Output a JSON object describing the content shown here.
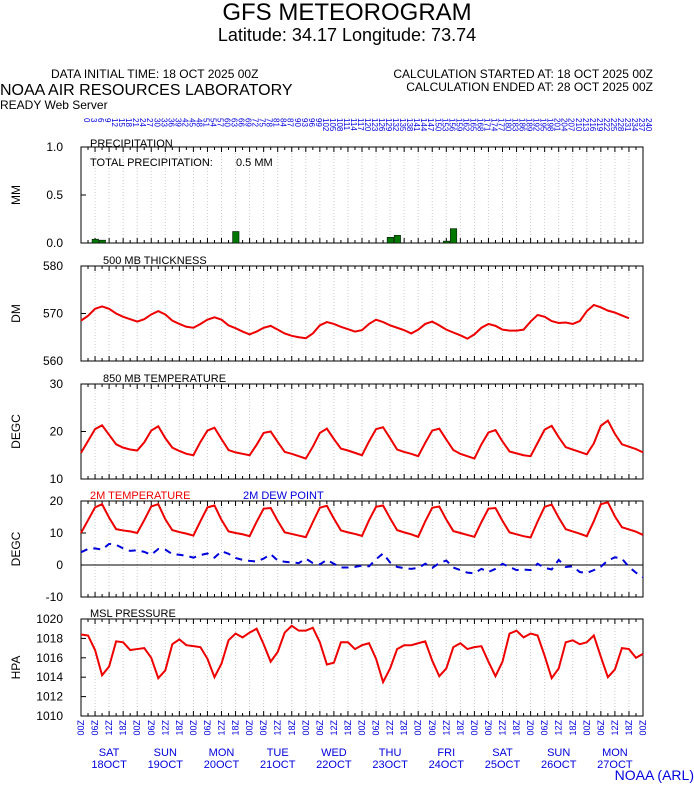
{
  "header": {
    "title": "GFS METEOROGRAM",
    "location": "Latitude: 34.17 Longitude:  73.74",
    "data_initial": "DATA INITIAL TIME: 18 OCT 2025 00Z",
    "calc_started": "CALCULATION STARTED AT: 18 OCT 2025 00Z",
    "calc_ended": "CALCULATION ENDED AT: 28 OCT 2025 00Z",
    "lab": "NOAA AIR RESOURCES LABORATORY",
    "server": "READY Web Server",
    "credit": "NOAA (ARL)"
  },
  "colors": {
    "red": "#ee0000",
    "blue": "#0000dd",
    "green": "#007700",
    "grid": "#cccccc"
  },
  "forecast_hours_top": [
    "0",
    "3",
    "6",
    "9",
    "12",
    "15",
    "18",
    "21",
    "24",
    "27",
    "30",
    "33",
    "36",
    "39",
    "42",
    "45",
    "48",
    "51",
    "54",
    "57",
    "60",
    "63",
    "66",
    "69",
    "72",
    "75",
    "78",
    "81",
    "84",
    "87",
    "90",
    "93",
    "96",
    "99",
    "102",
    "105",
    "108",
    "111",
    "114",
    "117",
    "120",
    "123",
    "126",
    "129",
    "132",
    "135",
    "138",
    "141",
    "144",
    "147",
    "150",
    "153",
    "156",
    "159",
    "162",
    "165",
    "168",
    "171",
    "174",
    "177",
    "180",
    "183",
    "186",
    "189",
    "192",
    "195",
    "198",
    "201",
    "204",
    "207",
    "210",
    "213",
    "216",
    "219",
    "222",
    "225",
    "228",
    "231",
    "234",
    "237",
    "240"
  ],
  "hours_utc_bottom": [
    "00Z",
    "06Z",
    "12Z",
    "18Z"
  ],
  "days": [
    {
      "dow": "SAT",
      "date": "18OCT"
    },
    {
      "dow": "SUN",
      "date": "19OCT"
    },
    {
      "dow": "MON",
      "date": "20OCT"
    },
    {
      "dow": "TUE",
      "date": "21OCT"
    },
    {
      "dow": "WED",
      "date": "22OCT"
    },
    {
      "dow": "THU",
      "date": "23OCT"
    },
    {
      "dow": "FRI",
      "date": "24OCT"
    },
    {
      "dow": "SAT",
      "date": "25OCT"
    },
    {
      "dow": "SUN",
      "date": "26OCT"
    },
    {
      "dow": "MON",
      "date": "27OCT"
    }
  ],
  "chart_data": [
    {
      "type": "bar",
      "title": "PRECIPITATION",
      "annotation_label": "TOTAL PRECIPITATION:",
      "annotation_value": "0.5 MM",
      "ylabel": "MM",
      "ylim": [
        0.0,
        1.0
      ],
      "yticks": [
        "0.0",
        "0.5",
        "1.0"
      ],
      "ytick_values": [
        0.0,
        0.5,
        1.0
      ],
      "bars": [
        {
          "hour": 6,
          "value": 0.04
        },
        {
          "hour": 9,
          "value": 0.03
        },
        {
          "hour": 66,
          "value": 0.12
        },
        {
          "hour": 132,
          "value": 0.06
        },
        {
          "hour": 135,
          "value": 0.08
        },
        {
          "hour": 156,
          "value": 0.02
        },
        {
          "hour": 159,
          "value": 0.15
        }
      ]
    },
    {
      "type": "line",
      "title": "500 MB  THICKNESS",
      "ylabel": "DM",
      "ylim": [
        560,
        580
      ],
      "yticks": [
        "560",
        "570",
        "580"
      ],
      "ytick_values": [
        560,
        570,
        580
      ],
      "series": [
        {
          "values": [
            568.5,
            569.5,
            571,
            571.5,
            571,
            570,
            569.3,
            568.8,
            568.3,
            568.8,
            569.8,
            570.5,
            569.8,
            568.5,
            567.8,
            567.2,
            567.0,
            567.8,
            568.7,
            569.2,
            568.7,
            567.5,
            566.9,
            566.2,
            565.6,
            566.2,
            567,
            567.4,
            566.6,
            565.8,
            565.3,
            565.0,
            564.8,
            565.8,
            567.5,
            568.2,
            567.8,
            567.2,
            566.7,
            566.2,
            566.5,
            567.8,
            568.7,
            568.2,
            567.5,
            567.0,
            566.5,
            565.8,
            566.6,
            567.8,
            568.3,
            567.5,
            566.6,
            566.0,
            565.4,
            564.7,
            565.6,
            567.0,
            567.8,
            567.4,
            566.6,
            566.4,
            566.4,
            566.6,
            568.3,
            569.7,
            569.3,
            568.4,
            568.0,
            568.1,
            567.8,
            568.4,
            570.5,
            571.8,
            571.3,
            570.6,
            570.2,
            569.6,
            569.0
          ]
        }
      ],
      "hours": [
        0,
        3,
        6,
        9,
        12,
        15,
        18,
        21,
        24,
        27,
        30,
        33,
        36,
        39,
        42,
        45,
        48,
        51,
        54,
        57,
        60,
        63,
        66,
        69,
        72,
        75,
        78,
        81,
        84,
        87,
        90,
        93,
        96,
        99,
        102,
        105,
        108,
        111,
        114,
        117,
        120,
        123,
        126,
        129,
        132,
        135,
        138,
        141,
        144,
        147,
        150,
        153,
        156,
        159,
        162,
        165,
        168,
        171,
        174,
        177,
        180,
        183,
        186,
        189,
        192,
        195,
        198,
        201,
        204,
        207,
        210,
        213,
        216,
        219,
        222,
        225,
        228,
        231,
        234
      ]
    },
    {
      "type": "line",
      "title": "850 MB  TEMPERATURE",
      "ylabel": "DEGC",
      "ylim": [
        10,
        30
      ],
      "yticks": [
        "10",
        "20",
        "30"
      ],
      "ytick_values": [
        10,
        20,
        30
      ],
      "series": [
        {
          "values": [
            15.5,
            18,
            20.5,
            21.3,
            19.3,
            17.3,
            16.6,
            16.2,
            16,
            17.7,
            20.2,
            21.1,
            18.6,
            16.6,
            15.9,
            15.3,
            15,
            17.8,
            20.2,
            20.8,
            18.4,
            16.1,
            15.6,
            15.3,
            15.0,
            17.2,
            19.7,
            20.0,
            17.8,
            15.7,
            15.3,
            14.8,
            14.3,
            16.8,
            19.7,
            20.6,
            18.4,
            16.4,
            16.0,
            15.5,
            15.0,
            17.9,
            20.5,
            20.9,
            18.6,
            16.2,
            15.7,
            15.3,
            14.8,
            17.6,
            20.2,
            20.6,
            18.3,
            16.1,
            15.3,
            14.8,
            14.3,
            17.3,
            19.8,
            20.3,
            17.9,
            15.8,
            15.4,
            15.0,
            14.8,
            17.6,
            20.4,
            21.2,
            18.8,
            16.7,
            16.2,
            15.7,
            15.2,
            17.5,
            21.2,
            22.3,
            19.5,
            17.3,
            16.8,
            16.3,
            15.6
          ]
        }
      ],
      "hours": [
        0,
        3,
        6,
        9,
        12,
        15,
        18,
        21,
        24,
        27,
        30,
        33,
        36,
        39,
        42,
        45,
        48,
        51,
        54,
        57,
        60,
        63,
        66,
        69,
        72,
        75,
        78,
        81,
        84,
        87,
        90,
        93,
        96,
        99,
        102,
        105,
        108,
        111,
        114,
        117,
        120,
        123,
        126,
        129,
        132,
        135,
        138,
        141,
        144,
        147,
        150,
        153,
        156,
        159,
        162,
        165,
        168,
        171,
        174,
        177,
        180,
        183,
        186,
        189,
        192,
        195,
        198,
        201,
        204,
        207,
        210,
        213,
        216,
        219,
        222,
        225,
        228,
        231,
        234,
        237,
        240
      ]
    },
    {
      "type": "line",
      "title_red": "2M TEMPERATURE",
      "title_blue": "2M  DEW POINT",
      "ylabel": "DEGC",
      "ylim": [
        -10,
        20
      ],
      "yticks": [
        "-10",
        "0",
        "10",
        "20"
      ],
      "ytick_values": [
        -10,
        0,
        10,
        20
      ],
      "series": [
        {
          "name": "2M TEMPERATURE",
          "values": [
            10,
            14,
            18,
            19,
            14.8,
            11.2,
            10.8,
            10.5,
            10.0,
            14,
            18.3,
            19.0,
            14.3,
            10.9,
            10.3,
            9.8,
            9.2,
            13.7,
            18.0,
            18.6,
            14.1,
            10.5,
            10.0,
            9.6,
            9.0,
            13.5,
            17.6,
            17.8,
            13.8,
            10.2,
            9.7,
            9.2,
            8.7,
            13.4,
            17.9,
            18.5,
            14.5,
            10.8,
            10.2,
            9.7,
            9.1,
            14.0,
            18.2,
            18.6,
            14.6,
            10.9,
            10.2,
            9.6,
            8.8,
            13.6,
            17.9,
            18.3,
            14.2,
            10.6,
            10.0,
            9.4,
            8.8,
            13.4,
            17.6,
            17.8,
            13.8,
            10.2,
            9.6,
            9.0,
            8.6,
            13.6,
            18.2,
            18.9,
            14.8,
            11.2,
            10.5,
            9.8,
            9.0,
            13.7,
            19.0,
            19.6,
            15.2,
            11.8,
            11.1,
            10.4,
            9.4
          ]
        },
        {
          "name": "2M  DEW POINT",
          "values": [
            4,
            5,
            5.2,
            4.8,
            6.6,
            6.3,
            5.2,
            4.4,
            4.6,
            4.1,
            3.2,
            5.0,
            4.8,
            3.4,
            3.2,
            2.9,
            2.3,
            3.1,
            3.6,
            2.3,
            4.3,
            3.5,
            2.2,
            1.6,
            1.3,
            1.1,
            2.0,
            3.4,
            1.4,
            1.0,
            0.8,
            0.6,
            2.0,
            0.6,
            0.2,
            1.6,
            0.4,
            -0.8,
            -0.8,
            -0.6,
            -0.2,
            -0.4,
            1.8,
            3.6,
            0.8,
            -0.6,
            -1.0,
            -1.2,
            -0.9,
            0.4,
            -0.9,
            0.6,
            1.4,
            -0.8,
            -1.6,
            -2.4,
            -2.6,
            -1.2,
            -2.2,
            -1.2,
            0.4,
            -0.6,
            -1.6,
            -1.4,
            -1.6,
            0.4,
            -0.9,
            -1.4,
            1.6,
            -0.6,
            -0.4,
            -2.2,
            -2.5,
            -1.6,
            -0.5,
            1.4,
            2.4,
            2.0,
            -0.6,
            -2.4,
            -3.8
          ]
        }
      ],
      "hours": [
        0,
        3,
        6,
        9,
        12,
        15,
        18,
        21,
        24,
        27,
        30,
        33,
        36,
        39,
        42,
        45,
        48,
        51,
        54,
        57,
        60,
        63,
        66,
        69,
        72,
        75,
        78,
        81,
        84,
        87,
        90,
        93,
        96,
        99,
        102,
        105,
        108,
        111,
        114,
        117,
        120,
        123,
        126,
        129,
        132,
        135,
        138,
        141,
        144,
        147,
        150,
        153,
        156,
        159,
        162,
        165,
        168,
        171,
        174,
        177,
        180,
        183,
        186,
        189,
        192,
        195,
        198,
        201,
        204,
        207,
        210,
        213,
        216,
        219,
        222,
        225,
        228,
        231,
        234,
        237,
        240
      ]
    },
    {
      "type": "line",
      "title": "MSL PRESSURE",
      "ylabel": "HPA",
      "ylim": [
        1010,
        1020
      ],
      "yticks": [
        "1010",
        "1012",
        "1014",
        "1016",
        "1018",
        "1020"
      ],
      "ytick_values": [
        1010,
        1012,
        1014,
        1016,
        1018,
        1020
      ],
      "series": [
        {
          "values": [
            1018.4,
            1018.3,
            1016.8,
            1014.2,
            1015.1,
            1017.7,
            1017.6,
            1016.8,
            1016.9,
            1017.0,
            1016.0,
            1013.9,
            1014.7,
            1017.4,
            1017.9,
            1017.3,
            1017.2,
            1017.1,
            1015.9,
            1014.0,
            1015.4,
            1017.8,
            1018.5,
            1018.1,
            1018.6,
            1019.0,
            1017.4,
            1015.6,
            1016.6,
            1018.6,
            1019.3,
            1018.8,
            1018.8,
            1019.1,
            1017.6,
            1015.3,
            1015.5,
            1017.6,
            1017.6,
            1016.9,
            1017.3,
            1017.5,
            1015.9,
            1013.5,
            1014.9,
            1016.9,
            1017.3,
            1017.3,
            1017.5,
            1017.7,
            1015.7,
            1014.1,
            1014.9,
            1017.1,
            1017.5,
            1016.9,
            1017.1,
            1017.2,
            1015.6,
            1014.1,
            1015.6,
            1018.5,
            1018.8,
            1018.1,
            1018.5,
            1018.3,
            1016.2,
            1013.9,
            1014.9,
            1017.6,
            1017.8,
            1017.4,
            1017.6,
            1018.3,
            1016.1,
            1014.0,
            1014.8,
            1017.0,
            1016.9,
            1016.0,
            1016.4
          ]
        }
      ],
      "hours": [
        0,
        3,
        6,
        9,
        12,
        15,
        18,
        21,
        24,
        27,
        30,
        33,
        36,
        39,
        42,
        45,
        48,
        51,
        54,
        57,
        60,
        63,
        66,
        69,
        72,
        75,
        78,
        81,
        84,
        87,
        90,
        93,
        96,
        99,
        102,
        105,
        108,
        111,
        114,
        117,
        120,
        123,
        126,
        129,
        132,
        135,
        138,
        141,
        144,
        147,
        150,
        153,
        156,
        159,
        162,
        165,
        168,
        171,
        174,
        177,
        180,
        183,
        186,
        189,
        192,
        195,
        198,
        201,
        204,
        207,
        210,
        213,
        216,
        219,
        222,
        225,
        228,
        231,
        234,
        237,
        240
      ]
    }
  ]
}
